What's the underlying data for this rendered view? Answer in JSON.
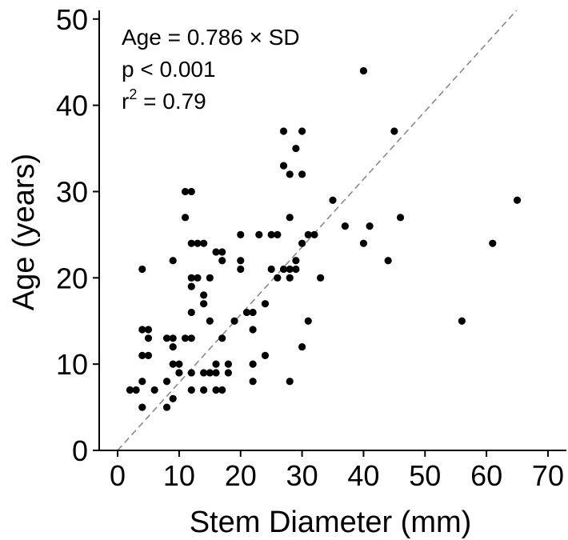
{
  "chart_data": {
    "type": "scatter",
    "xlabel": "Stem Diameter (mm)",
    "ylabel": "Age (years)",
    "xlim": [
      -3,
      73
    ],
    "ylim": [
      0,
      51
    ],
    "xticks": [
      0,
      10,
      20,
      30,
      40,
      50,
      60,
      70
    ],
    "yticks": [
      0,
      10,
      20,
      30,
      40,
      50
    ],
    "grid": false,
    "annotations": {
      "equation": "Age = 0.786 × SD",
      "p_value": "p < 0.001",
      "r2_prefix": "r",
      "r2_sup": "2",
      "r2_value": " = 0.79"
    },
    "trendline": {
      "slope": 0.786,
      "intercept": 0,
      "style": "dashed",
      "color": "#8a8a8a"
    },
    "points": [
      [
        2,
        7
      ],
      [
        3,
        7
      ],
      [
        4,
        5
      ],
      [
        4,
        8
      ],
      [
        4,
        11
      ],
      [
        4,
        14
      ],
      [
        4,
        21
      ],
      [
        5,
        11
      ],
      [
        5,
        13
      ],
      [
        5,
        14
      ],
      [
        6,
        7
      ],
      [
        8,
        5
      ],
      [
        8,
        8
      ],
      [
        8,
        13
      ],
      [
        9,
        6
      ],
      [
        9,
        10
      ],
      [
        9,
        12
      ],
      [
        9,
        13
      ],
      [
        9,
        22
      ],
      [
        10,
        9
      ],
      [
        10,
        10
      ],
      [
        11,
        13
      ],
      [
        11,
        27
      ],
      [
        11,
        30
      ],
      [
        12,
        7
      ],
      [
        12,
        9
      ],
      [
        12,
        13
      ],
      [
        12,
        16
      ],
      [
        12,
        19
      ],
      [
        12,
        20
      ],
      [
        12,
        24
      ],
      [
        12,
        30
      ],
      [
        13,
        20
      ],
      [
        13,
        24
      ],
      [
        14,
        7
      ],
      [
        14,
        9
      ],
      [
        14,
        17
      ],
      [
        14,
        18
      ],
      [
        14,
        24
      ],
      [
        15,
        9
      ],
      [
        15,
        15
      ],
      [
        15,
        20
      ],
      [
        16,
        7
      ],
      [
        16,
        9
      ],
      [
        16,
        10
      ],
      [
        16,
        23
      ],
      [
        17,
        7
      ],
      [
        17,
        13
      ],
      [
        17,
        22
      ],
      [
        17,
        23
      ],
      [
        18,
        9
      ],
      [
        18,
        10
      ],
      [
        19,
        15
      ],
      [
        20,
        21
      ],
      [
        20,
        22
      ],
      [
        20,
        25
      ],
      [
        21,
        16
      ],
      [
        22,
        8
      ],
      [
        22,
        10
      ],
      [
        22,
        14
      ],
      [
        22,
        16
      ],
      [
        23,
        25
      ],
      [
        24,
        11
      ],
      [
        24,
        17
      ],
      [
        25,
        21
      ],
      [
        25,
        25
      ],
      [
        26,
        20
      ],
      [
        26,
        25
      ],
      [
        27,
        21
      ],
      [
        27,
        33
      ],
      [
        27,
        37
      ],
      [
        28,
        8
      ],
      [
        28,
        20
      ],
      [
        28,
        21
      ],
      [
        28,
        27
      ],
      [
        28,
        32
      ],
      [
        29,
        21
      ],
      [
        29,
        22
      ],
      [
        29,
        35
      ],
      [
        30,
        12
      ],
      [
        30,
        24
      ],
      [
        30,
        32
      ],
      [
        30,
        37
      ],
      [
        31,
        15
      ],
      [
        31,
        25
      ],
      [
        32,
        25
      ],
      [
        33,
        20
      ],
      [
        35,
        29
      ],
      [
        37,
        26
      ],
      [
        40,
        24
      ],
      [
        40,
        44
      ],
      [
        41,
        26
      ],
      [
        44,
        22
      ],
      [
        45,
        37
      ],
      [
        46,
        27
      ],
      [
        56,
        15
      ],
      [
        61,
        24
      ],
      [
        65,
        29
      ]
    ]
  }
}
